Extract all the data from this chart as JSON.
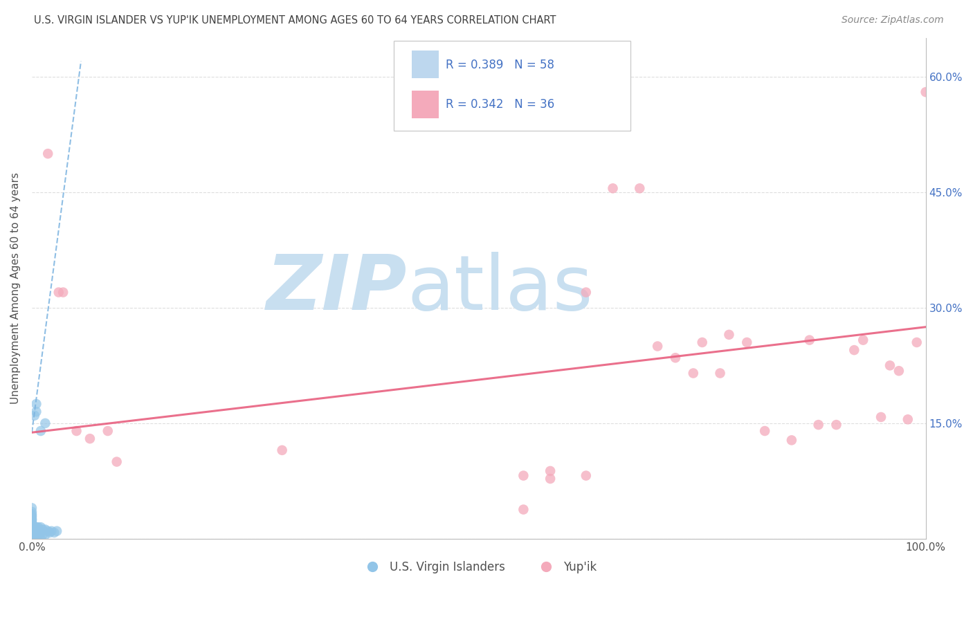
{
  "title": "U.S. VIRGIN ISLANDER VS YUP'IK UNEMPLOYMENT AMONG AGES 60 TO 64 YEARS CORRELATION CHART",
  "source": "Source: ZipAtlas.com",
  "ylabel": "Unemployment Among Ages 60 to 64 years",
  "xlim": [
    0,
    1.0
  ],
  "ylim": [
    0,
    0.65
  ],
  "xticks": [
    0.0,
    0.1,
    0.2,
    0.3,
    0.4,
    0.5,
    0.6,
    0.7,
    0.8,
    0.9,
    1.0
  ],
  "xticklabels": [
    "0.0%",
    "",
    "",
    "",
    "",
    "",
    "",
    "",
    "",
    "",
    "100.0%"
  ],
  "yticks": [
    0.0,
    0.15,
    0.3,
    0.45,
    0.6
  ],
  "yticklabels_right": [
    "",
    "15.0%",
    "30.0%",
    "45.0%",
    "60.0%"
  ],
  "legend1_label": "U.S. Virgin Islanders",
  "legend2_label": "Yup'ik",
  "R1": 0.389,
  "N1": 58,
  "R2": 0.342,
  "N2": 36,
  "color_blue": "#92C5E8",
  "color_pink": "#F4AABB",
  "color_trendline_blue": "#7BB3E0",
  "color_trendline_pink": "#E86080",
  "watermark_zip": "ZIP",
  "watermark_atlas": "atlas",
  "watermark_color_zip": "#C8DFF0",
  "watermark_color_atlas": "#C8DFF0",
  "blue_scatter_x": [
    0.0,
    0.0,
    0.0,
    0.0,
    0.0,
    0.0,
    0.0,
    0.0,
    0.0,
    0.0,
    0.0,
    0.0,
    0.0,
    0.0,
    0.0,
    0.0,
    0.0,
    0.0,
    0.0,
    0.0,
    0.0,
    0.0,
    0.0,
    0.0,
    0.0,
    0.0,
    0.0,
    0.0,
    0.0,
    0.0,
    0.003,
    0.003,
    0.003,
    0.005,
    0.005,
    0.005,
    0.005,
    0.007,
    0.007,
    0.007,
    0.007,
    0.01,
    0.01,
    0.01,
    0.012,
    0.012,
    0.015,
    0.015,
    0.018,
    0.02,
    0.022,
    0.025,
    0.028,
    0.003,
    0.005,
    0.005,
    0.01,
    0.015
  ],
  "blue_scatter_y": [
    0.0,
    0.0,
    0.0,
    0.0,
    0.0,
    0.0,
    0.005,
    0.005,
    0.005,
    0.008,
    0.01,
    0.01,
    0.01,
    0.012,
    0.012,
    0.015,
    0.015,
    0.018,
    0.018,
    0.02,
    0.02,
    0.02,
    0.022,
    0.025,
    0.025,
    0.028,
    0.03,
    0.032,
    0.035,
    0.04,
    0.0,
    0.005,
    0.01,
    0.0,
    0.005,
    0.01,
    0.015,
    0.005,
    0.008,
    0.012,
    0.015,
    0.0,
    0.008,
    0.015,
    0.005,
    0.012,
    0.005,
    0.012,
    0.01,
    0.008,
    0.01,
    0.008,
    0.01,
    0.16,
    0.165,
    0.175,
    0.14,
    0.15
  ],
  "pink_scatter_x": [
    0.018,
    0.03,
    0.035,
    0.05,
    0.065,
    0.085,
    0.095,
    0.28,
    0.55,
    0.58,
    0.62,
    0.65,
    0.68,
    0.7,
    0.72,
    0.74,
    0.75,
    0.77,
    0.78,
    0.8,
    0.82,
    0.85,
    0.87,
    0.88,
    0.9,
    0.92,
    0.93,
    0.95,
    0.96,
    0.97,
    0.98,
    0.99,
    1.0,
    0.58,
    0.62,
    0.55
  ],
  "pink_scatter_y": [
    0.5,
    0.32,
    0.32,
    0.14,
    0.13,
    0.14,
    0.1,
    0.115,
    0.082,
    0.078,
    0.32,
    0.455,
    0.455,
    0.25,
    0.235,
    0.215,
    0.255,
    0.215,
    0.265,
    0.255,
    0.14,
    0.128,
    0.258,
    0.148,
    0.148,
    0.245,
    0.258,
    0.158,
    0.225,
    0.218,
    0.155,
    0.255,
    0.58,
    0.088,
    0.082,
    0.038
  ],
  "blue_trend_x": [
    0.0,
    0.055
  ],
  "blue_trend_y": [
    0.138,
    0.62
  ],
  "pink_trend_x": [
    0.0,
    1.0
  ],
  "pink_trend_y": [
    0.138,
    0.275
  ],
  "grid_color": "#DEDEDE",
  "title_color": "#404040",
  "axis_label_color": "#505050",
  "tick_label_color": "#505050",
  "source_color": "#888888",
  "stat_color": "#4472C4",
  "legend_box_color_blue": "#BDD7EE",
  "legend_box_color_pink": "#F4AABB"
}
